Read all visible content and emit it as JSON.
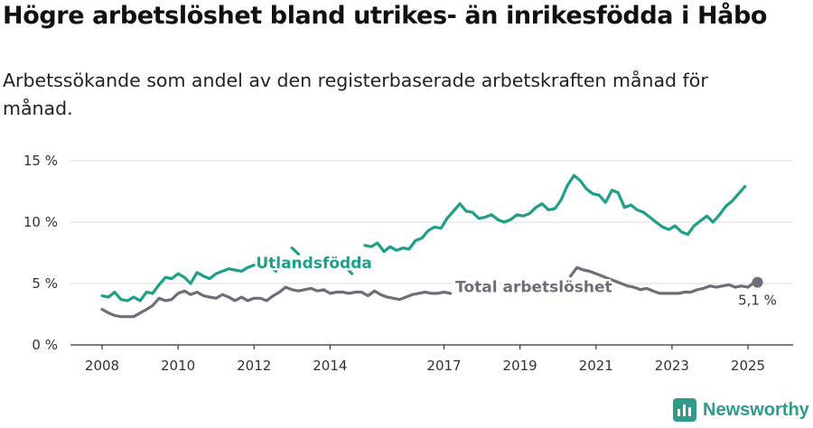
{
  "title": "Högre arbetslöshet bland utrikes- än inrikesfödda i Håbo",
  "subtitle": "Arbetssökande som andel av den registerbaserade arbetskraften månad för månad.",
  "brand": {
    "name": "Newsworthy",
    "icon": "newsworthy-logo-icon"
  },
  "chart_data": {
    "type": "line",
    "x_unit": "year (fractional, monthly)",
    "ylim": [
      0,
      15
    ],
    "y_ticks": [
      0,
      5,
      10,
      15
    ],
    "y_tick_labels": [
      "0 %",
      "5 %",
      "10 %",
      "15 %"
    ],
    "x_ticks": [
      2008,
      2010,
      2012,
      2014,
      2017,
      2019,
      2021,
      2023,
      2025
    ],
    "x_tick_labels": [
      "2008",
      "2010",
      "2012",
      "2014",
      "2017",
      "2019",
      "2021",
      "2023",
      "2025"
    ],
    "grid": "horizontal",
    "legend": "inline labels",
    "colors": {
      "foreign": "#1f9e89",
      "total": "#6e6e78",
      "grid": "#dddddd",
      "axis": "#333333"
    },
    "end_label": "5,1 %",
    "series": [
      {
        "name": "Utlandsfödda",
        "key": "foreign",
        "x": [
          2008.0,
          2008.17,
          2008.33,
          2008.5,
          2008.67,
          2008.83,
          2009.0,
          2009.17,
          2009.33,
          2009.5,
          2009.67,
          2009.83,
          2010.0,
          2010.17,
          2010.33,
          2010.5,
          2010.67,
          2010.83,
          2011.0,
          2011.17,
          2011.33,
          2011.5,
          2011.67,
          2011.83,
          2012.0,
          null,
          2012.42,
          2012.58,
          null,
          2013.0,
          2013.17,
          null,
          2014.42,
          2014.58,
          null,
          2014.92,
          2015.08,
          2015.25,
          2015.42,
          2015.58,
          2015.75,
          2015.92,
          2016.08,
          2016.25,
          2016.42,
          2016.58,
          2016.75,
          2016.92,
          2017.08,
          2017.25,
          2017.42,
          2017.58,
          2017.75,
          2017.92,
          2018.08,
          2018.25,
          2018.42,
          2018.58,
          2018.75,
          2018.92,
          2019.08,
          2019.25,
          2019.42,
          2019.58,
          2019.75,
          2019.92,
          2020.08,
          2020.25,
          2020.42,
          2020.58,
          2020.75,
          2020.92,
          2021.08,
          2021.25,
          2021.42,
          2021.58,
          2021.75,
          2021.92,
          2022.08,
          2022.25,
          2022.42,
          2022.58,
          2022.75,
          2022.92,
          2023.08,
          2023.25,
          2023.42,
          2023.58,
          2023.75,
          2023.92,
          2024.08,
          2024.25,
          2024.42,
          2024.58,
          2024.75,
          2024.92,
          2025.08,
          2025.25
        ],
        "values": [
          4.0,
          3.9,
          4.3,
          3.7,
          3.6,
          3.9,
          3.6,
          4.3,
          4.2,
          4.9,
          5.5,
          5.4,
          5.8,
          5.5,
          5.0,
          5.9,
          5.6,
          5.4,
          5.8,
          6.0,
          6.2,
          6.1,
          6.0,
          6.3,
          6.5,
          null,
          6.3,
          6.0,
          null,
          7.9,
          7.4,
          null,
          6.3,
          5.8,
          null,
          8.1,
          8.0,
          8.3,
          7.6,
          8.0,
          7.7,
          7.9,
          7.8,
          8.5,
          8.7,
          9.3,
          9.6,
          9.5,
          10.3,
          10.9,
          11.5,
          10.9,
          10.8,
          10.3,
          10.4,
          10.6,
          10.2,
          10.0,
          10.2,
          10.6,
          10.5,
          10.7,
          11.2,
          11.5,
          11.0,
          11.1,
          11.8,
          13.0,
          13.8,
          13.4,
          12.7,
          12.3,
          12.2,
          11.6,
          12.6,
          12.4,
          11.2,
          11.4,
          11.0,
          10.8,
          10.4,
          10.0,
          9.6,
          9.4,
          9.7,
          9.2,
          9.0,
          9.7,
          10.1,
          10.5,
          10.0,
          10.6,
          11.3,
          11.7,
          12.3,
          12.9,
          null,
          null
        ],
        "label": "Utlandsfödda",
        "label_x": 2012.05,
        "label_y": 6.25
      },
      {
        "name": "Total arbetslöshet",
        "key": "total",
        "x": [
          2008.0,
          2008.17,
          2008.33,
          2008.5,
          2008.67,
          2008.83,
          2009.0,
          2009.17,
          2009.33,
          2009.5,
          2009.67,
          2009.83,
          2010.0,
          2010.17,
          2010.33,
          2010.5,
          2010.67,
          2010.83,
          2011.0,
          2011.17,
          2011.33,
          2011.5,
          2011.67,
          2011.83,
          2012.0,
          2012.17,
          2012.33,
          2012.5,
          2012.67,
          2012.83,
          2013.0,
          2013.17,
          2013.33,
          2013.5,
          2013.67,
          2013.83,
          2014.0,
          2014.17,
          2014.33,
          2014.5,
          2014.67,
          2014.83,
          2015.0,
          2015.17,
          2015.33,
          2015.5,
          2015.67,
          2015.83,
          2016.0,
          2016.17,
          2016.33,
          2016.5,
          2016.67,
          2016.83,
          2017.0,
          2017.17,
          null,
          2020.33,
          2020.5,
          2020.67,
          2020.83,
          2021.0,
          2021.17,
          2021.33,
          2021.5,
          2021.67,
          2021.83,
          2022.0,
          2022.17,
          2022.33,
          2022.5,
          2022.67,
          2022.83,
          2023.0,
          2023.17,
          2023.33,
          2023.5,
          2023.67,
          2023.83,
          2024.0,
          2024.17,
          2024.33,
          2024.5,
          2024.67,
          2024.83,
          2025.0,
          2025.17,
          2025.25
        ],
        "values": [
          2.9,
          2.6,
          2.4,
          2.3,
          2.3,
          2.3,
          2.6,
          2.9,
          3.2,
          3.8,
          3.6,
          3.7,
          4.2,
          4.4,
          4.1,
          4.3,
          4.0,
          3.9,
          3.8,
          4.1,
          3.9,
          3.6,
          3.9,
          3.6,
          3.8,
          3.8,
          3.6,
          4.0,
          4.3,
          4.7,
          4.5,
          4.4,
          4.5,
          4.6,
          4.4,
          4.5,
          4.2,
          4.3,
          4.3,
          4.2,
          4.3,
          4.3,
          4.0,
          4.4,
          4.1,
          3.9,
          3.8,
          3.7,
          3.9,
          4.1,
          4.2,
          4.3,
          4.2,
          4.2,
          4.3,
          4.2,
          null,
          5.6,
          6.3,
          6.1,
          6.0,
          5.8,
          5.6,
          5.4,
          5.2,
          5.0,
          4.8,
          4.7,
          4.5,
          4.6,
          4.4,
          4.2,
          4.2,
          4.2,
          4.2,
          4.3,
          4.3,
          4.5,
          4.6,
          4.8,
          4.7,
          4.8,
          4.9,
          4.7,
          4.8,
          4.7,
          5.1,
          5.1
        ],
        "label": "Total arbetslöshet",
        "label_x": 2017.3,
        "label_y": 4.3
      }
    ]
  }
}
